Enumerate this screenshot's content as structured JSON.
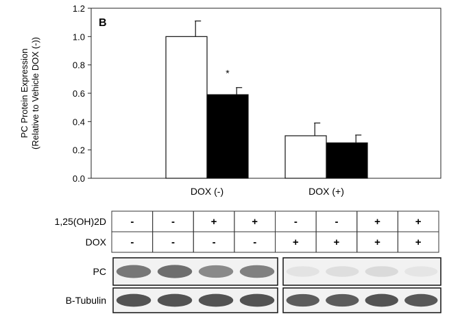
{
  "panel_label": "B",
  "chart_data": {
    "type": "bar",
    "categories": [
      "DOX (-)",
      "DOX (+)"
    ],
    "series": [
      {
        "values": [
          1.0,
          0.3
        ],
        "errors": [
          0.11,
          0.09
        ],
        "color": "#ffffff"
      },
      {
        "values": [
          0.59,
          0.25
        ],
        "errors": [
          0.05,
          0.055
        ],
        "color": "#000000"
      }
    ],
    "ylabel_line1": "PC Protein Expression",
    "ylabel_line2": "(Relative to Vehicle DOX (-))",
    "ylim": [
      0,
      1.2
    ],
    "yticks": [
      "0.0",
      "0.2",
      "0.4",
      "0.6",
      "0.8",
      "1.0",
      "1.2"
    ],
    "annotation": "*",
    "grid": false
  },
  "treatment_table": {
    "rows": [
      {
        "label": "1,25(OH)2D",
        "values": [
          "-",
          "-",
          "+",
          "+",
          "-",
          "-",
          "+",
          "+"
        ]
      },
      {
        "label": "DOX",
        "values": [
          "-",
          "-",
          "-",
          "-",
          "+",
          "+",
          "+",
          "+"
        ]
      }
    ]
  },
  "blots": [
    {
      "label": "PC",
      "left_intensity": [
        0.75,
        0.8,
        0.65,
        0.7
      ],
      "right_intensity": [
        0.15,
        0.18,
        0.2,
        0.14
      ]
    },
    {
      "label": "B-Tubulin",
      "left_intensity": [
        0.95,
        0.95,
        0.95,
        0.95
      ],
      "right_intensity": [
        0.9,
        0.9,
        0.95,
        0.92
      ]
    }
  ]
}
